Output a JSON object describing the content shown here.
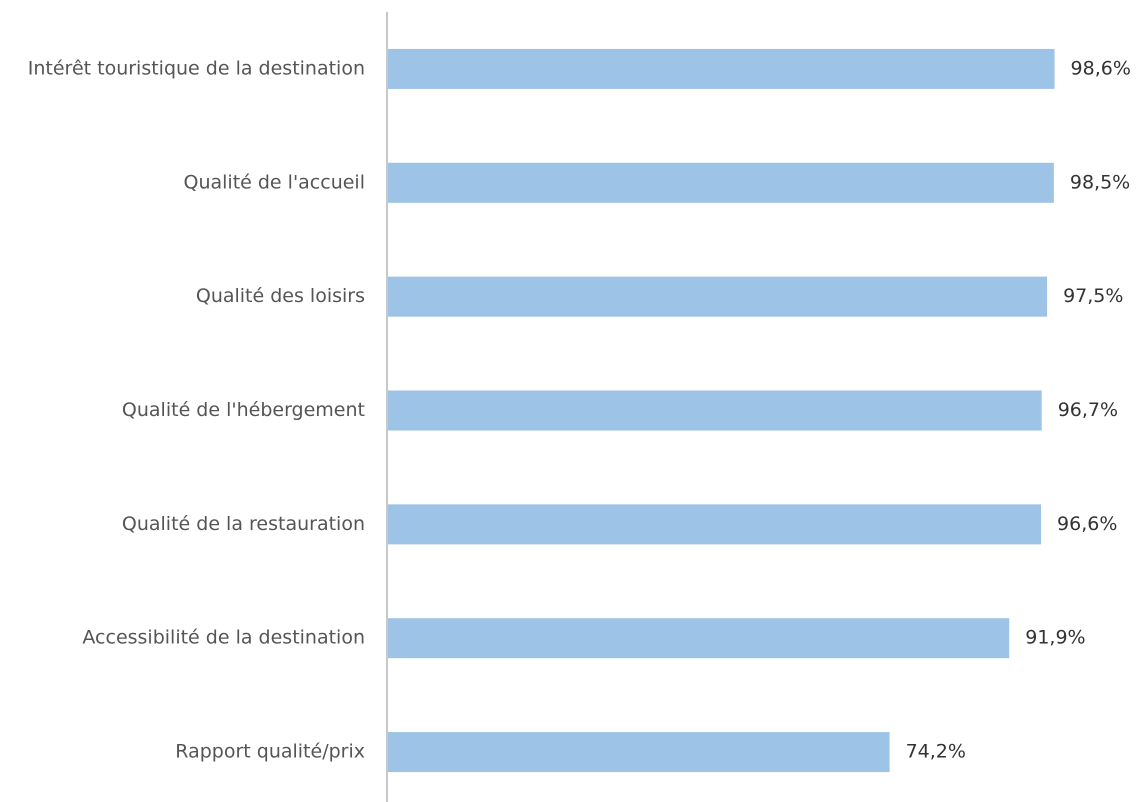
{
  "chart_data": {
    "type": "barh",
    "categories": [
      "Intérêt touristique de la destination",
      "Qualité de l'accueil",
      "Qualité des loisirs",
      "Qualité de l'hébergement",
      "Qualité de la restauration",
      "Accessibilité de la destination",
      "Rapport qualité/prix"
    ],
    "values": [
      98.6,
      98.5,
      97.5,
      96.7,
      96.6,
      91.9,
      74.2
    ],
    "value_labels": [
      "98,6%",
      "98,5%",
      "97,5%",
      "96,7%",
      "96,6%",
      "91,9%",
      "74,2%"
    ],
    "color": "#9dc3e6",
    "xlim": [
      0,
      100
    ]
  }
}
